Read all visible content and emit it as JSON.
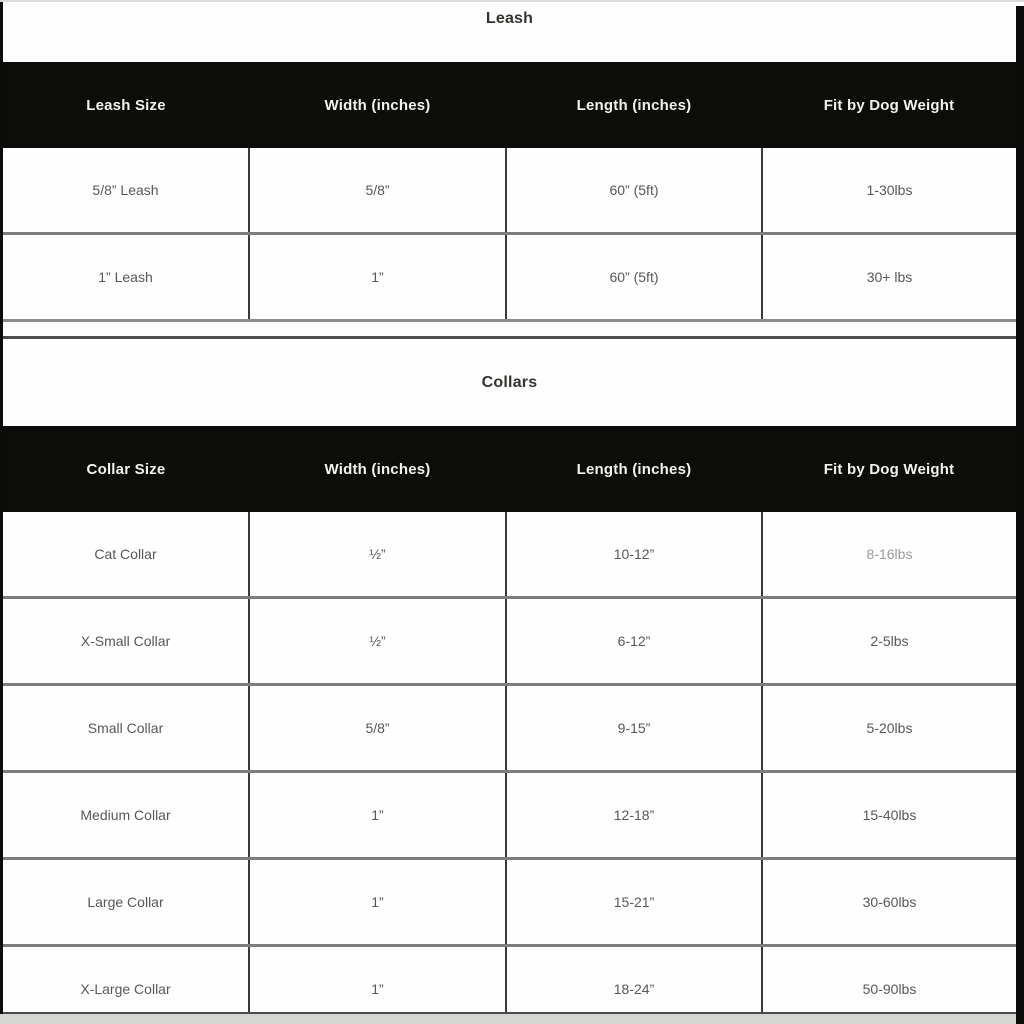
{
  "leash_section": {
    "title": "Leash",
    "headers": [
      "Leash Size",
      "Width (inches)",
      "Length (inches)",
      "Fit by Dog Weight"
    ],
    "rows": [
      [
        "5/8” Leash",
        "5/8”",
        "60” (5ft)",
        "1-30lbs"
      ],
      [
        "1” Leash",
        "1”",
        "60” (5ft)",
        "30+ lbs"
      ]
    ]
  },
  "collars_section": {
    "title": "Collars",
    "headers": [
      "Collar Size",
      "Width (inches)",
      "Length (inches)",
      "Fit by Dog Weight"
    ],
    "rows": [
      [
        "Cat Collar",
        "½”",
        "10-12”",
        "8-16lbs"
      ],
      [
        "X-Small Collar",
        "½”",
        "6-12”",
        "2-5lbs"
      ],
      [
        "Small Collar",
        "5/8”",
        "9-15”",
        "5-20lbs"
      ],
      [
        "Medium Collar",
        "1”",
        "12-18”",
        "15-40lbs"
      ],
      [
        "Large Collar",
        "1”",
        "15-21”",
        "30-60lbs"
      ],
      [
        "X-Large Collar",
        "1”",
        "18-24”",
        "50-90lbs"
      ]
    ]
  },
  "colors": {
    "header_bg": "#0c0c0a",
    "header_text": "#f3f1ed",
    "cell_text": "#585856",
    "muted_cell_text": "#9b9b99",
    "vertical_divider": "#3a3a3a",
    "row_divider": "#7d7d7b",
    "bottom_strip": "#d5d5d3"
  }
}
